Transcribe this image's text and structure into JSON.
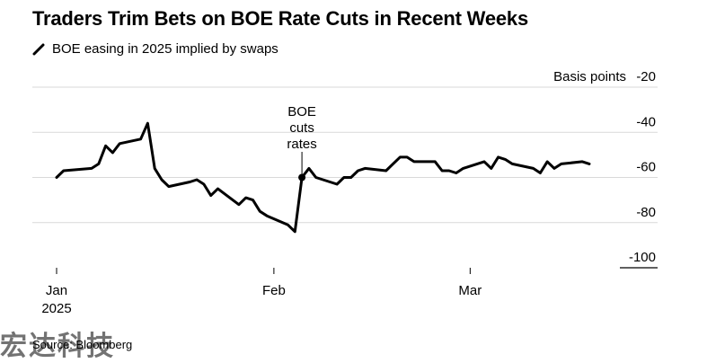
{
  "header": {
    "title": "Traders Trim Bets on BOE Rate Cuts in Recent Weeks"
  },
  "legend": {
    "label": "BOE easing in 2025 implied by swaps"
  },
  "source": "Source: Bloomberg",
  "watermark": "宏达科技",
  "colors": {
    "line": "#000000",
    "grid": "#d9d9d9",
    "text": "#000000"
  },
  "chart_data": {
    "type": "line",
    "title": "Traders Trim Bets on BOE Rate Cuts in Recent Weeks",
    "ylabel": "Basis points",
    "ylim": [
      -100,
      -20
    ],
    "yticks": [
      -20,
      -40,
      -60,
      -80,
      -100
    ],
    "y_axis_position": "right",
    "grid": true,
    "x_tick_labels": [
      {
        "date": "2025-01-01",
        "lines": [
          "Jan",
          "2025"
        ]
      },
      {
        "date": "2025-02-01",
        "lines": [
          "Feb"
        ]
      },
      {
        "date": "2025-03-01",
        "lines": [
          "Mar"
        ]
      }
    ],
    "series": [
      {
        "name": "BOE easing in 2025 implied by swaps",
        "points": [
          [
            "2025-01-01",
            -60
          ],
          [
            "2025-01-02",
            -57
          ],
          [
            "2025-01-06",
            -56
          ],
          [
            "2025-01-07",
            -54
          ],
          [
            "2025-01-08",
            -46
          ],
          [
            "2025-01-09",
            -49
          ],
          [
            "2025-01-10",
            -45
          ],
          [
            "2025-01-13",
            -43
          ],
          [
            "2025-01-14",
            -36
          ],
          [
            "2025-01-15",
            -56
          ],
          [
            "2025-01-16",
            -61
          ],
          [
            "2025-01-17",
            -64
          ],
          [
            "2025-01-20",
            -62
          ],
          [
            "2025-01-21",
            -61
          ],
          [
            "2025-01-22",
            -63
          ],
          [
            "2025-01-23",
            -68
          ],
          [
            "2025-01-24",
            -65
          ],
          [
            "2025-01-27",
            -72
          ],
          [
            "2025-01-28",
            -69
          ],
          [
            "2025-01-29",
            -70
          ],
          [
            "2025-01-30",
            -75
          ],
          [
            "2025-01-31",
            -77
          ],
          [
            "2025-02-03",
            -81
          ],
          [
            "2025-02-04",
            -84
          ],
          [
            "2025-02-05",
            -60
          ],
          [
            "2025-02-06",
            -56
          ],
          [
            "2025-02-07",
            -60
          ],
          [
            "2025-02-10",
            -63
          ],
          [
            "2025-02-11",
            -60
          ],
          [
            "2025-02-12",
            -60
          ],
          [
            "2025-02-13",
            -57
          ],
          [
            "2025-02-14",
            -56
          ],
          [
            "2025-02-17",
            -57
          ],
          [
            "2025-02-18",
            -54
          ],
          [
            "2025-02-19",
            -51
          ],
          [
            "2025-02-20",
            -51
          ],
          [
            "2025-02-21",
            -53
          ],
          [
            "2025-02-24",
            -53
          ],
          [
            "2025-02-25",
            -57
          ],
          [
            "2025-02-26",
            -57
          ],
          [
            "2025-02-27",
            -58
          ],
          [
            "2025-02-28",
            -56
          ],
          [
            "2025-03-03",
            -53
          ],
          [
            "2025-03-04",
            -56
          ],
          [
            "2025-03-05",
            -51
          ],
          [
            "2025-03-06",
            -52
          ],
          [
            "2025-03-07",
            -54
          ],
          [
            "2025-03-10",
            -56
          ],
          [
            "2025-03-11",
            -58
          ],
          [
            "2025-03-12",
            -53
          ],
          [
            "2025-03-13",
            -56
          ],
          [
            "2025-03-14",
            -54
          ],
          [
            "2025-03-17",
            -53
          ],
          [
            "2025-03-18",
            -54
          ]
        ]
      }
    ],
    "annotations": [
      {
        "date": "2025-02-05",
        "value": -60,
        "lines": [
          "BOE",
          "cuts",
          "rates"
        ]
      }
    ]
  }
}
